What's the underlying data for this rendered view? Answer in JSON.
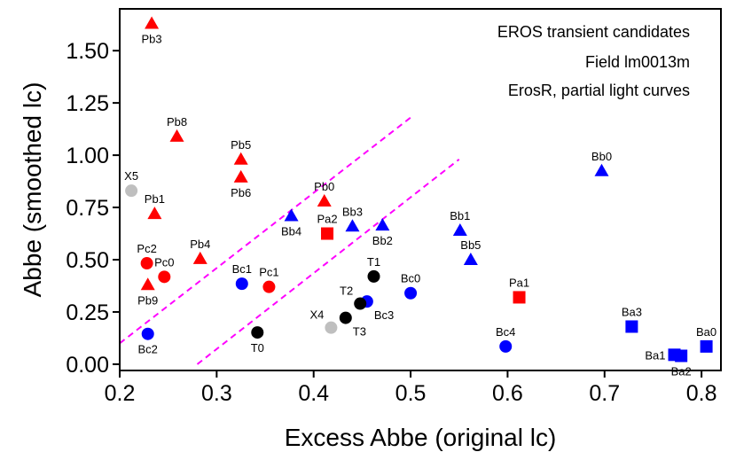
{
  "chart_data": {
    "type": "scatter",
    "xlabel": "Excess Abbe (original lc)",
    "ylabel": "Abbe (smoothed lc)",
    "xlim": [
      0.2,
      0.82
    ],
    "ylim": [
      -0.03,
      1.7
    ],
    "xticks": [
      "0.2",
      "0.3",
      "0.4",
      "0.5",
      "0.6",
      "0.7",
      "0.8"
    ],
    "yticks": [
      "0.00",
      "0.25",
      "0.50",
      "0.75",
      "1.00",
      "1.25",
      "1.50"
    ],
    "annotations": [
      "EROS transient candidates",
      "Field lm0013m",
      "ErosR, partial light curves"
    ],
    "colors": {
      "red": "#ff0000",
      "blue": "#0000ff",
      "black": "#000000",
      "gray": "#bfbfbf",
      "magenta": "#ff00ff"
    },
    "reference_lines": [
      {
        "name": "upper-dashed-line",
        "x": [
          0.2,
          0.5
        ],
        "y": [
          0.1,
          1.18
        ],
        "color": "#ff00ff",
        "style": "dashed"
      },
      {
        "name": "lower-dashed-line",
        "x": [
          0.28,
          0.55
        ],
        "y": [
          0.0,
          0.98
        ],
        "color": "#ff00ff",
        "style": "dashed"
      }
    ],
    "points": [
      {
        "label": "Pb3",
        "x": 0.233,
        "y": 1.63,
        "marker": "triangle",
        "color": "#ff0000",
        "label_pos": "below"
      },
      {
        "label": "Pb8",
        "x": 0.259,
        "y": 1.09,
        "marker": "triangle",
        "color": "#ff0000",
        "label_pos": "above"
      },
      {
        "label": "Pb5",
        "x": 0.325,
        "y": 0.98,
        "marker": "triangle",
        "color": "#ff0000",
        "label_pos": "above"
      },
      {
        "label": "Pb6",
        "x": 0.325,
        "y": 0.895,
        "marker": "triangle",
        "color": "#ff0000",
        "label_pos": "below"
      },
      {
        "label": "Pb1",
        "x": 0.236,
        "y": 0.72,
        "marker": "triangle",
        "color": "#ff0000",
        "label_pos": "above"
      },
      {
        "label": "Pb0",
        "x": 0.411,
        "y": 0.78,
        "marker": "triangle",
        "color": "#ff0000",
        "label_pos": "above"
      },
      {
        "label": "Pb4",
        "x": 0.283,
        "y": 0.505,
        "marker": "triangle",
        "color": "#ff0000",
        "label_pos": "above"
      },
      {
        "label": "Pb9",
        "x": 0.229,
        "y": 0.38,
        "marker": "triangle",
        "color": "#ff0000",
        "label_pos": "below"
      },
      {
        "label": "Pc2",
        "x": 0.228,
        "y": 0.483,
        "marker": "circle",
        "color": "#ff0000",
        "label_pos": "above"
      },
      {
        "label": "Pc0",
        "x": 0.246,
        "y": 0.418,
        "marker": "circle",
        "color": "#ff0000",
        "label_pos": "above"
      },
      {
        "label": "Pc1",
        "x": 0.354,
        "y": 0.37,
        "marker": "circle",
        "color": "#ff0000",
        "label_pos": "above"
      },
      {
        "label": "Pa2",
        "x": 0.414,
        "y": 0.625,
        "marker": "square",
        "color": "#ff0000",
        "label_pos": "above"
      },
      {
        "label": "Pa1",
        "x": 0.612,
        "y": 0.32,
        "marker": "square",
        "color": "#ff0000",
        "label_pos": "above"
      },
      {
        "label": "Bb4",
        "x": 0.377,
        "y": 0.71,
        "marker": "triangle",
        "color": "#0000ff",
        "label_pos": "below"
      },
      {
        "label": "Bb3",
        "x": 0.44,
        "y": 0.66,
        "marker": "triangle",
        "color": "#0000ff",
        "label_pos": "above"
      },
      {
        "label": "Bb2",
        "x": 0.471,
        "y": 0.665,
        "marker": "triangle",
        "color": "#0000ff",
        "label_pos": "below"
      },
      {
        "label": "Bb1",
        "x": 0.551,
        "y": 0.64,
        "marker": "triangle",
        "color": "#0000ff",
        "label_pos": "above"
      },
      {
        "label": "Bb5",
        "x": 0.562,
        "y": 0.5,
        "marker": "triangle",
        "color": "#0000ff",
        "label_pos": "above"
      },
      {
        "label": "Bb0",
        "x": 0.697,
        "y": 0.925,
        "marker": "triangle",
        "color": "#0000ff",
        "label_pos": "above"
      },
      {
        "label": "Bc1",
        "x": 0.326,
        "y": 0.385,
        "marker": "circle",
        "color": "#0000ff",
        "label_pos": "above"
      },
      {
        "label": "Bc0",
        "x": 0.5,
        "y": 0.34,
        "marker": "circle",
        "color": "#0000ff",
        "label_pos": "above"
      },
      {
        "label": "Bc3",
        "x": 0.455,
        "y": 0.3,
        "marker": "circle",
        "color": "#0000ff",
        "label_pos": "below-right"
      },
      {
        "label": "Bc2",
        "x": 0.229,
        "y": 0.145,
        "marker": "circle",
        "color": "#0000ff",
        "label_pos": "below"
      },
      {
        "label": "Bc4",
        "x": 0.598,
        "y": 0.085,
        "marker": "circle",
        "color": "#0000ff",
        "label_pos": "above"
      },
      {
        "label": "Ba3",
        "x": 0.728,
        "y": 0.18,
        "marker": "square",
        "color": "#0000ff",
        "label_pos": "above"
      },
      {
        "label": "Ba0",
        "x": 0.805,
        "y": 0.085,
        "marker": "square",
        "color": "#0000ff",
        "label_pos": "above"
      },
      {
        "label": "Ba1",
        "x": 0.772,
        "y": 0.045,
        "marker": "square",
        "color": "#0000ff",
        "label_pos": "left"
      },
      {
        "label": "Ba2",
        "x": 0.779,
        "y": 0.04,
        "marker": "square",
        "color": "#0000ff",
        "label_pos": "below"
      },
      {
        "label": "T1",
        "x": 0.462,
        "y": 0.42,
        "marker": "circle",
        "color": "#000000",
        "label_pos": "above"
      },
      {
        "label": "T2",
        "x": 0.448,
        "y": 0.29,
        "marker": "circle",
        "color": "#000000",
        "label_pos": "above-left"
      },
      {
        "label": "T3",
        "x": 0.433,
        "y": 0.222,
        "marker": "circle",
        "color": "#000000",
        "label_pos": "below-right"
      },
      {
        "label": "T0",
        "x": 0.342,
        "y": 0.152,
        "marker": "circle",
        "color": "#000000",
        "label_pos": "below"
      },
      {
        "label": "X5",
        "x": 0.212,
        "y": 0.83,
        "marker": "circle",
        "color": "#bfbfbf",
        "label_pos": "above"
      },
      {
        "label": "X4",
        "x": 0.418,
        "y": 0.175,
        "marker": "circle",
        "color": "#bfbfbf",
        "label_pos": "above-left"
      }
    ]
  }
}
